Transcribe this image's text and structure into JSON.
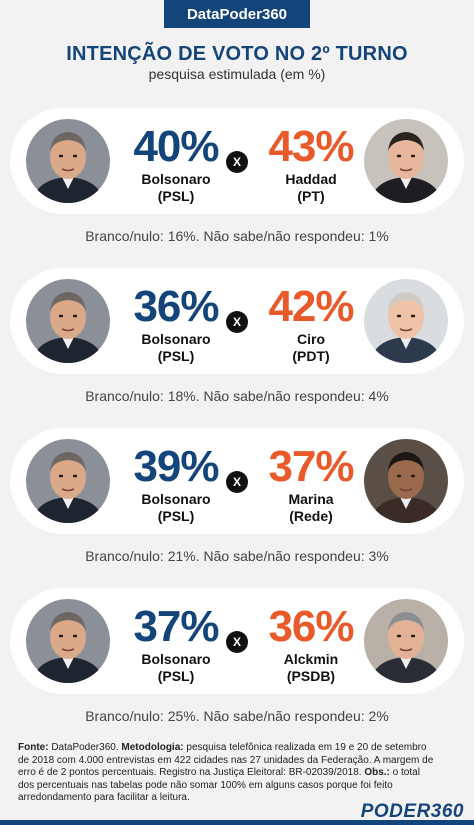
{
  "header": {
    "tag": "DataPoder360"
  },
  "title": "INTENÇÃO DE VOTO NO 2º TURNO",
  "subtitle": "pesquisa estimulada (em %)",
  "vs_label": "X",
  "colors": {
    "brand": "#14457a",
    "left_value": "#14457a",
    "right_value": "#e85a2a"
  },
  "chart_data": {
    "type": "table",
    "title": "INTENÇÃO DE VOTO NO 2º TURNO",
    "subtitle": "pesquisa estimulada (em %)",
    "matchups": [
      {
        "left": {
          "pct": "40%",
          "value": 40,
          "name": "Bolsonaro",
          "party": "(PSL)"
        },
        "right": {
          "pct": "43%",
          "value": 43,
          "name": "Haddad",
          "party": "(PT)"
        },
        "note": "Branco/nulo: 16%. Não sabe/não respondeu: 1%"
      },
      {
        "left": {
          "pct": "36%",
          "value": 36,
          "name": "Bolsonaro",
          "party": "(PSL)"
        },
        "right": {
          "pct": "42%",
          "value": 42,
          "name": "Ciro",
          "party": "(PDT)"
        },
        "note": "Branco/nulo: 18%. Não sabe/não respondeu: 4%"
      },
      {
        "left": {
          "pct": "39%",
          "value": 39,
          "name": "Bolsonaro",
          "party": "(PSL)"
        },
        "right": {
          "pct": "37%",
          "value": 37,
          "name": "Marina",
          "party": "(Rede)"
        },
        "note": "Branco/nulo: 21%. Não sabe/não respondeu: 3%"
      },
      {
        "left": {
          "pct": "37%",
          "value": 37,
          "name": "Bolsonaro",
          "party": "(PSL)"
        },
        "right": {
          "pct": "36%",
          "value": 36,
          "name": "Alckmin",
          "party": "(PSDB)"
        },
        "note": "Branco/nulo: 25%. Não sabe/não respondeu: 2%"
      }
    ]
  },
  "footer": {
    "source_label": "Fonte:",
    "source_text": " DataPoder360.",
    "method_label": "Metodologia:",
    "method_text": " pesquisa telefônica realizada em 19 e 20 de setembro de 2018 com 4.000 entrevistas em 422 cidades nas 27 unidades da Federação. A margem de erro é de 2 pontos percentuais. Registro na Justiça Eleitoral: BR-02039/2018.",
    "obs_label": "Obs.:",
    "obs_text": " o total dos percentuais nas tabelas pode não somar 100% em alguns casos porque foi feito arredondamento para facilitar a leitura."
  },
  "logo": {
    "part1": "PODER",
    "part2": "360"
  }
}
